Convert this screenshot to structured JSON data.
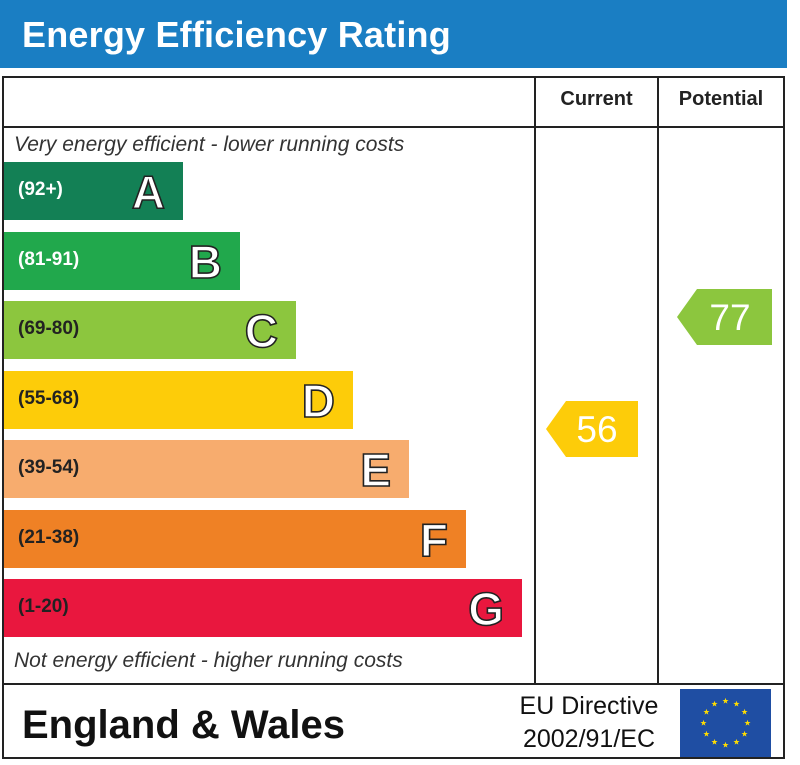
{
  "header": {
    "title": "Energy Efficiency Rating"
  },
  "columns": {
    "current": "Current",
    "potential": "Potential"
  },
  "notes": {
    "top": "Very energy efficient - lower running costs",
    "bottom": "Not energy efficient - higher running costs"
  },
  "footer": {
    "region": "England & Wales",
    "directive_line1": "EU Directive",
    "directive_line2": "2002/91/EC",
    "flag_icon": "eu-flag-icon"
  },
  "chart_data": {
    "type": "bar",
    "title": "Energy Efficiency Rating",
    "categories": [
      "A",
      "B",
      "C",
      "D",
      "E",
      "F",
      "G"
    ],
    "bands": [
      {
        "letter": "A",
        "range": "(92+)",
        "color": "#138055",
        "text_color": "#ffffff"
      },
      {
        "letter": "B",
        "range": "(81-91)",
        "color": "#21a84c",
        "text_color": "#ffffff"
      },
      {
        "letter": "C",
        "range": "(69-80)",
        "color": "#8cc63e",
        "text_color": "#222222"
      },
      {
        "letter": "D",
        "range": "(55-68)",
        "color": "#fdcc09",
        "text_color": "#222222"
      },
      {
        "letter": "E",
        "range": "(39-54)",
        "color": "#f7ac6e",
        "text_color": "#222222"
      },
      {
        "letter": "F",
        "range": "(21-38)",
        "color": "#ef8125",
        "text_color": "#222222"
      },
      {
        "letter": "G",
        "range": "(1-20)",
        "color": "#e9173e",
        "text_color": "#222222"
      }
    ],
    "ratings": {
      "current": {
        "value": 56,
        "band": "D",
        "color": "#fdcc09"
      },
      "potential": {
        "value": 77,
        "band": "C",
        "color": "#8cc63e"
      }
    }
  }
}
